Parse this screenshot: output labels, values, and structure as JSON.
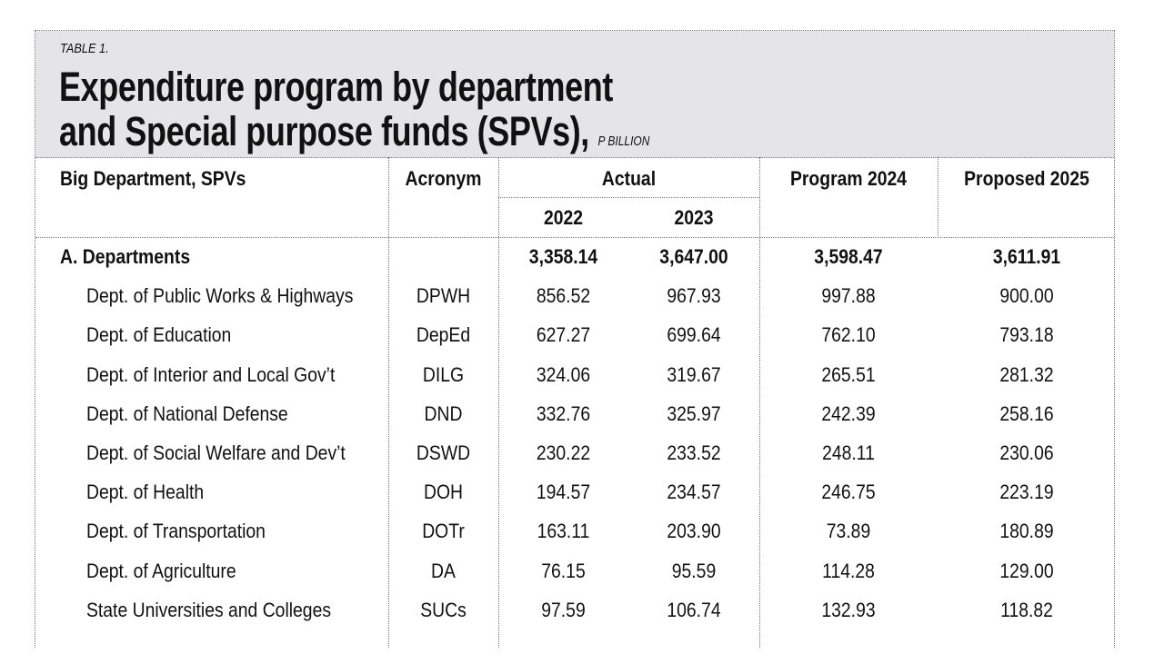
{
  "table_label": "TABLE 1.",
  "title_line1": "Expenditure program by department",
  "title_line2": "and Special purpose funds (SPVs),",
  "unit": "P BILLION",
  "headers": {
    "name": "Big Department, SPVs",
    "acronym": "Acronym",
    "actual": "Actual",
    "y2022": "2022",
    "y2023": "2023",
    "program": "Program 2024",
    "proposed": "Proposed 2025"
  },
  "rows": [
    {
      "name": "A. Departments",
      "acronym": "",
      "v2022": "3,358.14",
      "v2023": "3,647.00",
      "p2024": "3,598.47",
      "p2025": "3,611.91"
    },
    {
      "name": "Dept. of Public Works & Highways",
      "acronym": "DPWH",
      "v2022": "856.52",
      "v2023": "967.93",
      "p2024": "997.88",
      "p2025": "900.00"
    },
    {
      "name": "Dept. of Education",
      "acronym": "DepEd",
      "v2022": "627.27",
      "v2023": "699.64",
      "p2024": "762.10",
      "p2025": "793.18"
    },
    {
      "name": "Dept. of Interior and Local Gov’t",
      "acronym": "DILG",
      "v2022": "324.06",
      "v2023": "319.67",
      "p2024": "265.51",
      "p2025": "281.32"
    },
    {
      "name": "Dept. of National Defense",
      "acronym": "DND",
      "v2022": "332.76",
      "v2023": "325.97",
      "p2024": "242.39",
      "p2025": "258.16"
    },
    {
      "name": "Dept. of Social Welfare and Dev’t",
      "acronym": "DSWD",
      "v2022": "230.22",
      "v2023": "233.52",
      "p2024": "248.11",
      "p2025": "230.06"
    },
    {
      "name": "Dept. of Health",
      "acronym": "DOH",
      "v2022": "194.57",
      "v2023": "234.57",
      "p2024": "246.75",
      "p2025": "223.19"
    },
    {
      "name": "Dept. of Transportation",
      "acronym": "DOTr",
      "v2022": "163.11",
      "v2023": "203.90",
      "p2024": "73.89",
      "p2025": "180.89"
    },
    {
      "name": "Dept. of Agriculture",
      "acronym": "DA",
      "v2022": "76.15",
      "v2023": "95.59",
      "p2024": "114.28",
      "p2025": "129.00"
    },
    {
      "name": "State Universities and Colleges",
      "acronym": "SUCs",
      "v2022": "97.59",
      "v2023": "106.74",
      "p2024": "132.93",
      "p2025": "118.82"
    }
  ]
}
